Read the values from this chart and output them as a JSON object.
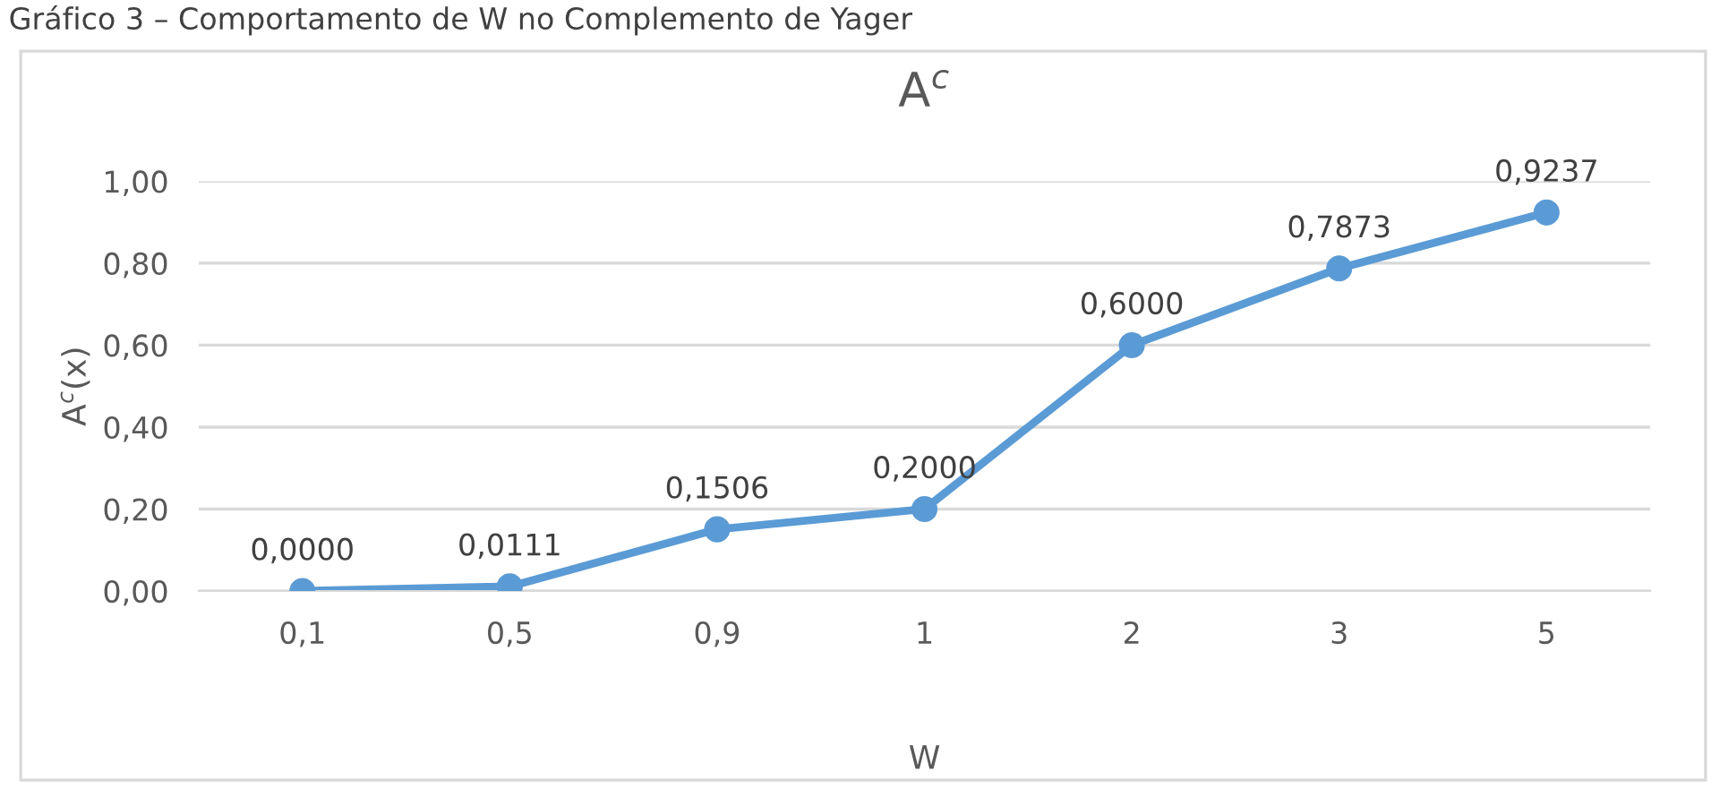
{
  "chart_data": {
    "type": "line",
    "title": "A$^{c}$",
    "xlabel": "W",
    "ylabel": "A$^{c}$(x)",
    "annotations": [
      "Gráfico 3 – Comportamento de W no Complemento de Yager"
    ],
    "categories": [
      "0,1",
      "0,5",
      "0,9",
      "1",
      "2",
      "3",
      "5"
    ],
    "series": [
      {
        "color": "#5b9bd5",
        "values": [
          0.0,
          0.0111,
          0.1506,
          0.2,
          0.6,
          0.7873,
          0.9237
        ],
        "value_labels": [
          "0,0000",
          "0,0111",
          "0,1506",
          "0,2000",
          "0,6000",
          "0,7873",
          "0,9237"
        ]
      }
    ],
    "ylim": [
      0,
      1
    ],
    "yticks": [
      {
        "value": 0,
        "label": "0,00"
      },
      {
        "value": 0.2,
        "label": "0,20"
      },
      {
        "value": 0.4,
        "label": "0,40"
      },
      {
        "value": 0.6,
        "label": "0,60"
      },
      {
        "value": 0.8,
        "label": "0,80"
      },
      {
        "value": 1,
        "label": "1,00"
      }
    ],
    "grid": "y",
    "marker": "circle",
    "line_style": "solid",
    "legend": false
  }
}
